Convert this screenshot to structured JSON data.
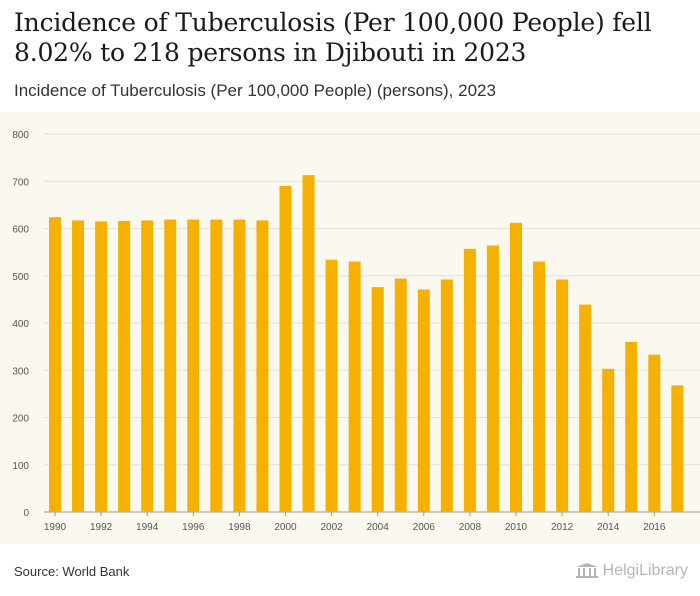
{
  "header": {
    "title": "Incidence of Tuberculosis (Per 100,000 People) fell 8.02% to 218 persons in Djibouti in 2023",
    "subtitle": "Incidence of Tuberculosis (Per 100,000 People) (persons), 2023"
  },
  "footer": {
    "source": "Source: World Bank",
    "logo_text": "HelgiLibrary"
  },
  "colors": {
    "bar": "#f5b000",
    "panel": "#fbf8ef",
    "grid": "#e4e1d8"
  },
  "chart_data": {
    "type": "bar",
    "title": "",
    "xlabel": "",
    "ylabel": "",
    "ylim": [
      0,
      800
    ],
    "yticks": [
      0,
      100,
      200,
      300,
      400,
      500,
      600,
      700,
      800
    ],
    "grid": true,
    "categories": [
      1990,
      1991,
      1992,
      1993,
      1994,
      1995,
      1996,
      1997,
      1998,
      1999,
      2000,
      2001,
      2002,
      2003,
      2004,
      2005,
      2006,
      2007,
      2008,
      2009,
      2010,
      2011,
      2012,
      2013,
      2014,
      2015,
      2016,
      2017
    ],
    "x_tick_labels": [
      "1990",
      "1992",
      "1994",
      "1996",
      "1998",
      "2000",
      "2002",
      "2004",
      "2006",
      "2008",
      "2010",
      "2012",
      "2014",
      "2016"
    ],
    "values": [
      624,
      617,
      615,
      616,
      617,
      619,
      619,
      619,
      619,
      617,
      690,
      713,
      534,
      530,
      476,
      494,
      471,
      492,
      557,
      564,
      612,
      530,
      492,
      439,
      303,
      360,
      333,
      268
    ]
  }
}
